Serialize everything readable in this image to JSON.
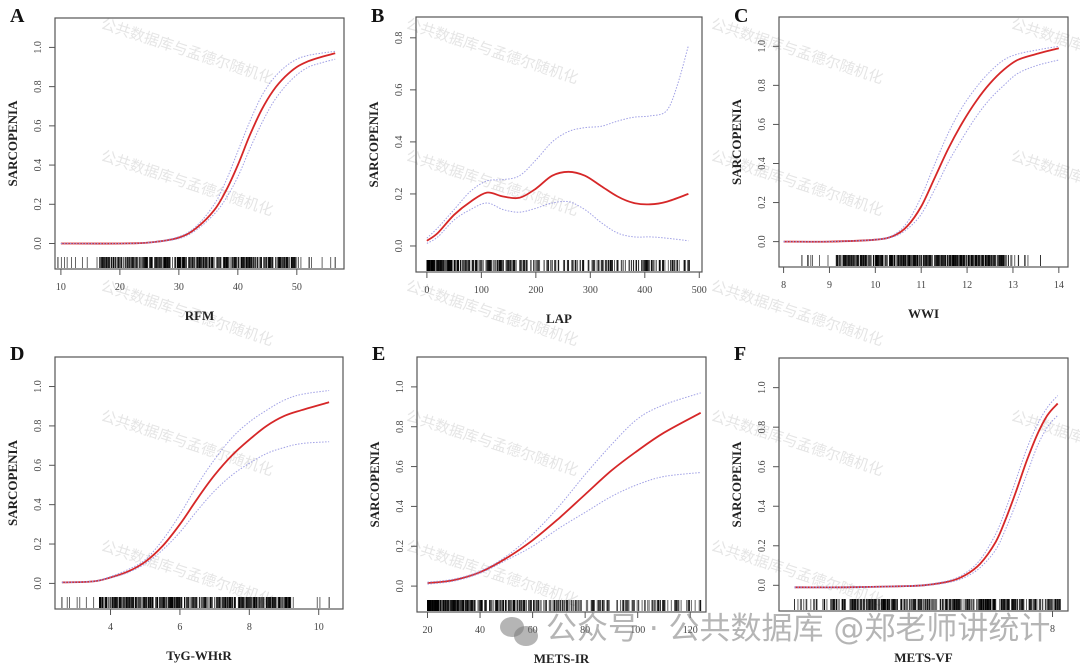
{
  "figure": {
    "watermark_text": "公共数据库与孟德尔随机化",
    "footer_watermark": "公众号 · 公共数据库 @郑老师讲统计",
    "colors": {
      "fit_line": "#d62728",
      "ci_line": "#8f8fe0",
      "rug": "#000000",
      "frame": "#555555",
      "tick_label": "#444444"
    }
  },
  "chart_data": [
    {
      "panel": "A",
      "type": "line",
      "xlabel": "RFM",
      "ylabel": "SARCOPENIA",
      "xlim": [
        9,
        58
      ],
      "ylim": [
        -0.13,
        1.15
      ],
      "xticks": [
        10,
        20,
        30,
        40,
        50
      ],
      "yticks": [
        0.0,
        0.2,
        0.4,
        0.6,
        0.8,
        1.0
      ],
      "series": [
        {
          "name": "fit",
          "x": [
            10,
            20,
            25,
            30,
            33,
            36,
            38,
            40,
            42,
            44,
            46,
            48,
            50,
            52,
            54,
            56.5
          ],
          "y": [
            0.0,
            0.0,
            0.005,
            0.03,
            0.08,
            0.17,
            0.27,
            0.4,
            0.55,
            0.68,
            0.78,
            0.85,
            0.9,
            0.93,
            0.95,
            0.97
          ]
        },
        {
          "name": "upper_ci",
          "x": [
            10,
            20,
            25,
            30,
            33,
            36,
            38,
            40,
            42,
            44,
            46,
            48,
            50,
            52,
            54,
            56.5
          ],
          "y": [
            0.0,
            0.0,
            0.006,
            0.035,
            0.09,
            0.2,
            0.32,
            0.47,
            0.62,
            0.75,
            0.84,
            0.9,
            0.94,
            0.96,
            0.97,
            0.98
          ]
        },
        {
          "name": "lower_ci",
          "x": [
            10,
            20,
            25,
            30,
            33,
            36,
            38,
            40,
            42,
            44,
            46,
            48,
            50,
            52,
            54,
            56.5
          ],
          "y": [
            0.0,
            0.0,
            0.004,
            0.025,
            0.07,
            0.15,
            0.23,
            0.34,
            0.48,
            0.61,
            0.72,
            0.8,
            0.86,
            0.9,
            0.92,
            0.94
          ]
        }
      ],
      "rug_range": [
        9.5,
        56.5
      ]
    },
    {
      "panel": "B",
      "type": "line",
      "xlabel": "LAP",
      "ylabel": "SARCOPENIA",
      "xlim": [
        -20,
        505
      ],
      "ylim": [
        -0.1,
        0.88
      ],
      "xticks": [
        0,
        100,
        200,
        300,
        400,
        500
      ],
      "yticks": [
        0.0,
        0.2,
        0.4,
        0.6,
        0.8
      ],
      "series": [
        {
          "name": "fit",
          "x": [
            0,
            20,
            50,
            80,
            110,
            140,
            170,
            200,
            230,
            260,
            290,
            320,
            350,
            380,
            410,
            440,
            480
          ],
          "y": [
            0.02,
            0.05,
            0.12,
            0.17,
            0.205,
            0.19,
            0.185,
            0.22,
            0.27,
            0.285,
            0.27,
            0.23,
            0.19,
            0.165,
            0.16,
            0.17,
            0.2
          ]
        },
        {
          "name": "upper_ci",
          "x": [
            0,
            20,
            50,
            80,
            110,
            140,
            170,
            200,
            230,
            260,
            290,
            320,
            350,
            380,
            410,
            440,
            460,
            480
          ],
          "y": [
            0.03,
            0.07,
            0.14,
            0.21,
            0.25,
            0.255,
            0.27,
            0.33,
            0.4,
            0.44,
            0.455,
            0.46,
            0.48,
            0.495,
            0.5,
            0.52,
            0.62,
            0.77
          ]
        },
        {
          "name": "lower_ci",
          "x": [
            0,
            20,
            50,
            80,
            110,
            140,
            170,
            200,
            230,
            260,
            290,
            320,
            350,
            380,
            410,
            440,
            480
          ],
          "y": [
            0.01,
            0.035,
            0.1,
            0.14,
            0.165,
            0.14,
            0.13,
            0.145,
            0.165,
            0.17,
            0.14,
            0.09,
            0.05,
            0.035,
            0.035,
            0.03,
            0.02
          ]
        }
      ],
      "rug_range": [
        0,
        482
      ]
    },
    {
      "panel": "C",
      "type": "line",
      "xlabel": "WWI",
      "ylabel": "SARCOPENIA",
      "xlim": [
        7.9,
        14.2
      ],
      "ylim": [
        -0.13,
        1.15
      ],
      "xticks": [
        8,
        9,
        10,
        11,
        12,
        13,
        14
      ],
      "yticks": [
        0.0,
        0.2,
        0.4,
        0.6,
        0.8,
        1.0
      ],
      "series": [
        {
          "name": "fit",
          "x": [
            8,
            9,
            10,
            10.4,
            10.7,
            11,
            11.3,
            11.6,
            11.9,
            12.2,
            12.5,
            12.8,
            13.1,
            13.5,
            14
          ],
          "y": [
            0.0,
            0.0,
            0.01,
            0.03,
            0.08,
            0.18,
            0.33,
            0.48,
            0.61,
            0.72,
            0.81,
            0.88,
            0.93,
            0.96,
            0.99
          ]
        },
        {
          "name": "upper_ci",
          "x": [
            8,
            9,
            10,
            10.4,
            10.7,
            11,
            11.3,
            11.6,
            11.9,
            12.2,
            12.5,
            12.8,
            13.1,
            13.5,
            14
          ],
          "y": [
            0.0,
            0.0,
            0.012,
            0.035,
            0.1,
            0.23,
            0.4,
            0.56,
            0.69,
            0.79,
            0.87,
            0.93,
            0.96,
            0.98,
            1.0
          ]
        },
        {
          "name": "lower_ci",
          "x": [
            8,
            9,
            10,
            10.4,
            10.7,
            11,
            11.3,
            11.6,
            11.9,
            12.2,
            12.5,
            12.8,
            13.1,
            13.5,
            14
          ],
          "y": [
            0.0,
            0.0,
            0.008,
            0.025,
            0.065,
            0.14,
            0.27,
            0.41,
            0.53,
            0.64,
            0.73,
            0.8,
            0.86,
            0.9,
            0.93
          ]
        }
      ],
      "rug_range": [
        8.4,
        13.6
      ]
    },
    {
      "panel": "D",
      "type": "line",
      "xlabel": "TyG-WHtR",
      "ylabel": "SARCOPENIA",
      "xlim": [
        2.4,
        10.7
      ],
      "ylim": [
        -0.13,
        1.15
      ],
      "xticks": [
        4,
        6,
        8,
        10
      ],
      "yticks": [
        0.0,
        0.2,
        0.4,
        0.6,
        0.8,
        1.0
      ],
      "series": [
        {
          "name": "fit",
          "x": [
            2.6,
            3.5,
            4,
            4.5,
            5,
            5.5,
            6,
            6.5,
            7,
            7.5,
            8,
            8.5,
            9,
            9.5,
            10.3
          ],
          "y": [
            0.005,
            0.01,
            0.03,
            0.06,
            0.11,
            0.19,
            0.3,
            0.43,
            0.55,
            0.65,
            0.73,
            0.8,
            0.85,
            0.88,
            0.92
          ]
        },
        {
          "name": "upper_ci",
          "x": [
            2.6,
            3.5,
            4,
            4.5,
            5,
            5.5,
            6,
            6.5,
            7,
            7.5,
            8,
            8.5,
            9,
            9.5,
            10.3
          ],
          "y": [
            0.006,
            0.012,
            0.035,
            0.07,
            0.12,
            0.22,
            0.35,
            0.5,
            0.63,
            0.74,
            0.82,
            0.88,
            0.93,
            0.96,
            0.98
          ]
        },
        {
          "name": "lower_ci",
          "x": [
            2.6,
            3.5,
            4,
            4.5,
            5,
            5.5,
            6,
            6.5,
            7,
            7.5,
            8,
            8.5,
            9,
            9.5,
            10.3
          ],
          "y": [
            0.004,
            0.009,
            0.028,
            0.055,
            0.1,
            0.17,
            0.26,
            0.37,
            0.47,
            0.55,
            0.61,
            0.66,
            0.69,
            0.71,
            0.72
          ]
        }
      ],
      "rug_range": [
        2.6,
        10.3
      ]
    },
    {
      "panel": "E",
      "type": "line",
      "xlabel": "METS-IR",
      "ylabel": "SARCOPENIA",
      "xlim": [
        16,
        126
      ],
      "ylim": [
        -0.13,
        1.15
      ],
      "xticks": [
        20,
        40,
        60,
        80,
        100,
        120
      ],
      "yticks": [
        0.0,
        0.2,
        0.4,
        0.6,
        0.8,
        1.0
      ],
      "series": [
        {
          "name": "fit",
          "x": [
            20,
            30,
            40,
            50,
            60,
            70,
            80,
            90,
            100,
            110,
            124
          ],
          "y": [
            0.015,
            0.03,
            0.07,
            0.14,
            0.23,
            0.34,
            0.46,
            0.58,
            0.68,
            0.77,
            0.87
          ]
        },
        {
          "name": "upper_ci",
          "x": [
            20,
            30,
            40,
            50,
            60,
            70,
            80,
            90,
            100,
            110,
            124
          ],
          "y": [
            0.02,
            0.035,
            0.075,
            0.15,
            0.26,
            0.4,
            0.56,
            0.71,
            0.84,
            0.91,
            0.97
          ]
        },
        {
          "name": "lower_ci",
          "x": [
            20,
            30,
            40,
            50,
            60,
            70,
            80,
            90,
            100,
            110,
            124
          ],
          "y": [
            0.01,
            0.025,
            0.065,
            0.13,
            0.2,
            0.29,
            0.37,
            0.45,
            0.51,
            0.55,
            0.57
          ]
        }
      ],
      "rug_range": [
        20,
        124
      ]
    },
    {
      "panel": "F",
      "type": "line",
      "xlabel": "METS-VF",
      "ylabel": "SARCOPENIA",
      "xlim": [
        2.7,
        8.3
      ],
      "ylim": [
        -0.13,
        1.15
      ],
      "xticks": [
        8
      ],
      "yticks": [
        0.0,
        0.2,
        0.4,
        0.6,
        0.8,
        1.0
      ],
      "series": [
        {
          "name": "fit",
          "x": [
            3,
            4,
            5,
            5.5,
            6,
            6.3,
            6.6,
            6.9,
            7.1,
            7.3,
            7.5,
            7.7,
            7.9,
            8.1
          ],
          "y": [
            -0.01,
            -0.01,
            -0.005,
            0.0,
            0.02,
            0.05,
            0.11,
            0.22,
            0.34,
            0.48,
            0.63,
            0.76,
            0.86,
            0.92
          ]
        },
        {
          "name": "upper_ci",
          "x": [
            3,
            4,
            5,
            5.5,
            6,
            6.3,
            6.6,
            6.9,
            7.1,
            7.3,
            7.5,
            7.7,
            7.9,
            8.1
          ],
          "y": [
            -0.008,
            -0.008,
            -0.003,
            0.003,
            0.025,
            0.06,
            0.13,
            0.26,
            0.39,
            0.54,
            0.69,
            0.81,
            0.9,
            0.96
          ]
        },
        {
          "name": "lower_ci",
          "x": [
            3,
            4,
            5,
            5.5,
            6,
            6.3,
            6.6,
            6.9,
            7.1,
            7.3,
            7.5,
            7.7,
            7.9,
            8.1
          ],
          "y": [
            -0.012,
            -0.012,
            -0.007,
            -0.003,
            0.015,
            0.04,
            0.09,
            0.18,
            0.29,
            0.42,
            0.56,
            0.7,
            0.8,
            0.86
          ]
        }
      ],
      "rug_range": [
        3.0,
        8.15
      ]
    }
  ]
}
